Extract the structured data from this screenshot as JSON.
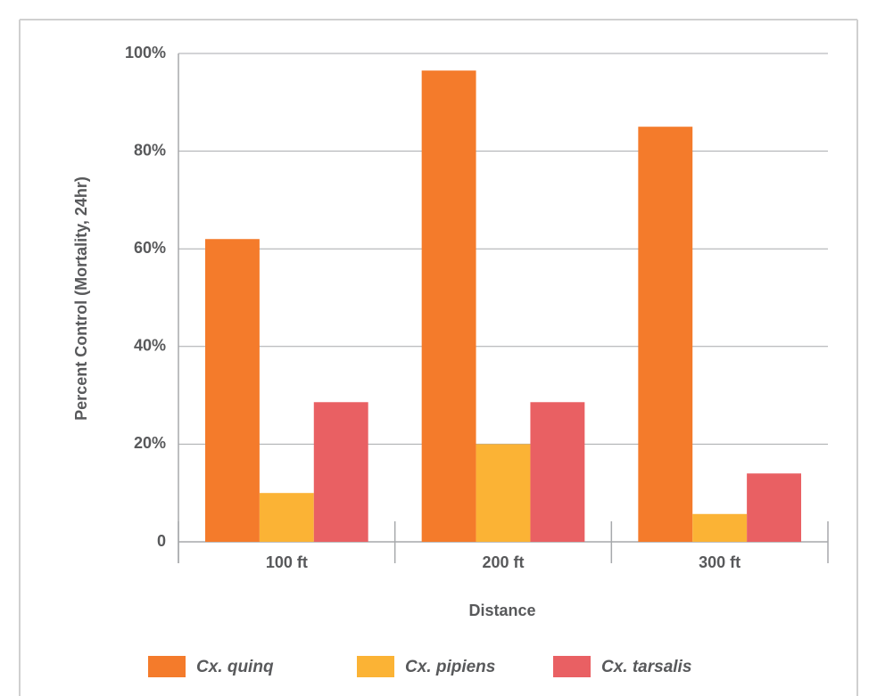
{
  "chart_data": {
    "type": "bar",
    "x_label": "Distance",
    "y_label": "Percent Control (Mortality, 24hr)",
    "categories": [
      "100 ft",
      "200 ft",
      "300 ft"
    ],
    "series": [
      {
        "name": "Cx. quinq",
        "color": "#f47b2b",
        "values": [
          62,
          96.5,
          85
        ]
      },
      {
        "name": "Cx. pipiens",
        "color": "#fbb335",
        "values": [
          10,
          20,
          5.7
        ]
      },
      {
        "name": "Cx. tarsalis",
        "color": "#e96063",
        "values": [
          28.6,
          28.6,
          14
        ]
      }
    ],
    "ylim": [
      0,
      100
    ],
    "yticks": [
      0,
      {
        "value": 20,
        "label": "20%"
      },
      {
        "value": 40,
        "label": "40%"
      },
      {
        "value": 60,
        "label": "60%"
      },
      {
        "value": 80,
        "label": "80%"
      },
      {
        "value": 100,
        "label": "100%"
      }
    ],
    "grid": true,
    "legend": "bottom"
  }
}
